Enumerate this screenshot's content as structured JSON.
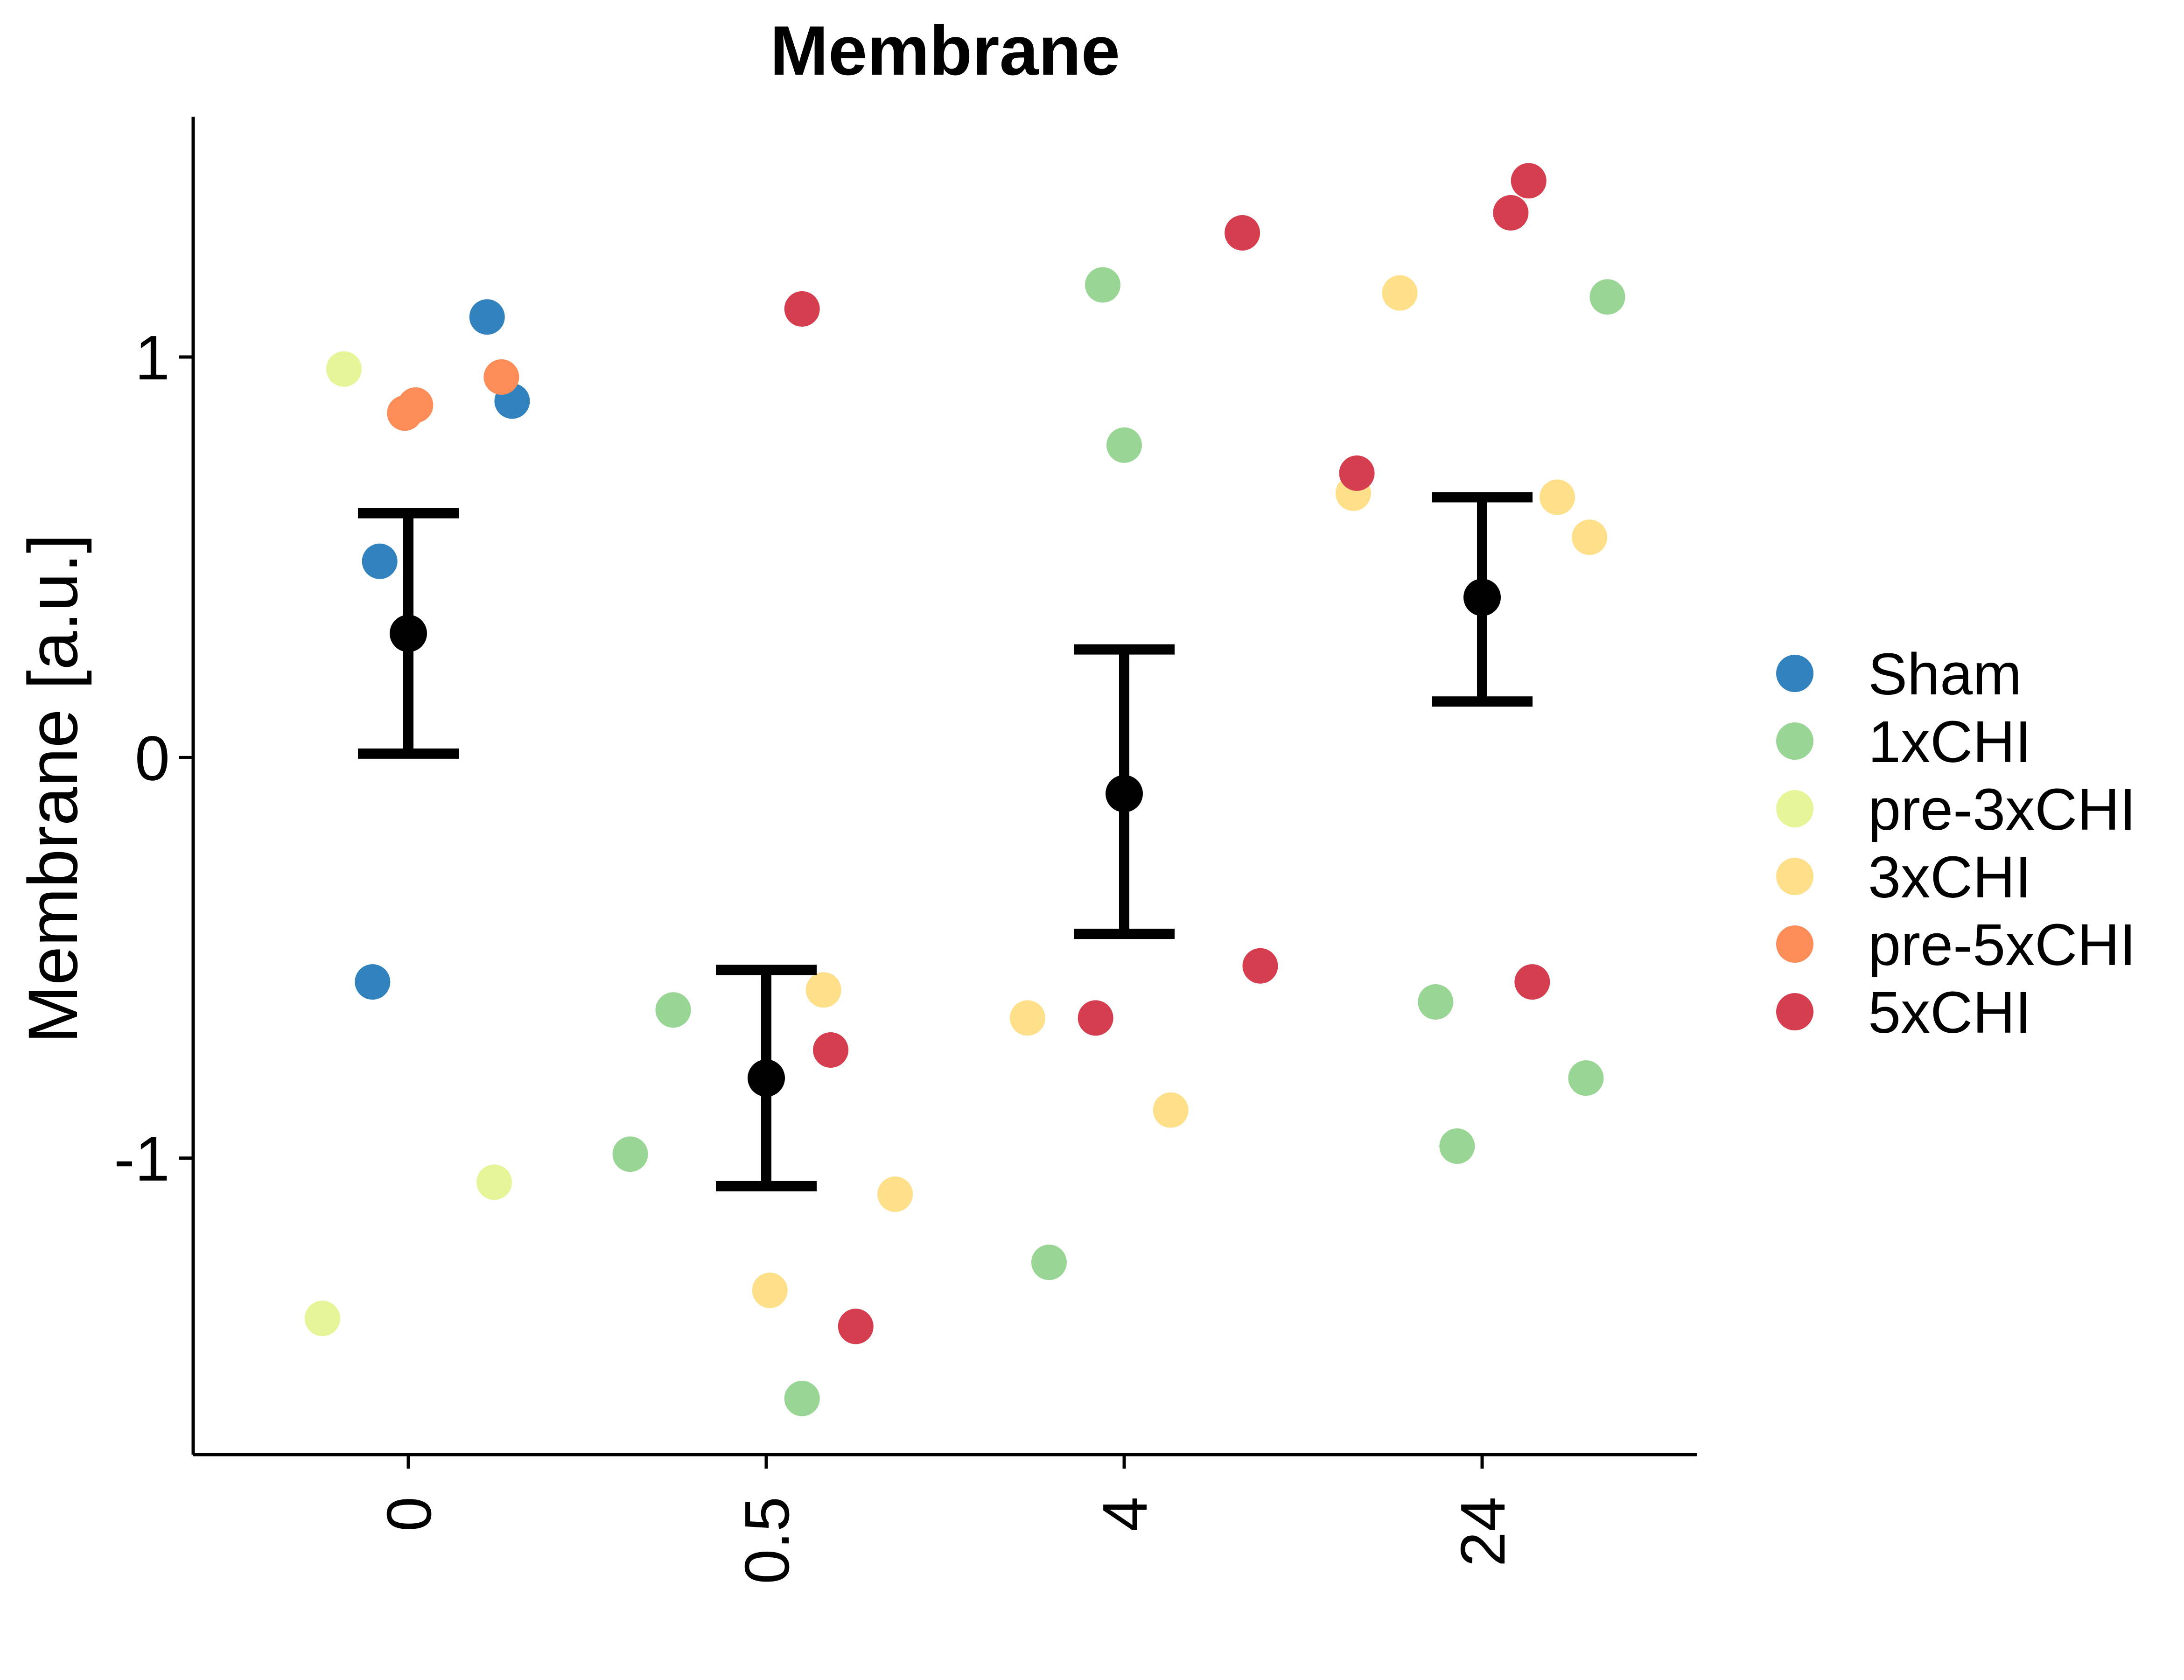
{
  "chart_data": {
    "type": "scatter",
    "title": "Membrane",
    "xlabel": "",
    "ylabel": "Membrane [a.u.]",
    "x_categories": [
      "0",
      "0.5",
      "4",
      "24"
    ],
    "y_ticks": [
      1,
      0,
      -1
    ],
    "y_tick_labels": [
      "1",
      "0",
      "-1"
    ],
    "ylim": [
      -1.74,
      1.6
    ],
    "grid": false,
    "legend_position": "right",
    "legend": [
      {
        "name": "Sham",
        "color": "#3182bd"
      },
      {
        "name": "1xCHI",
        "color": "#99d594"
      },
      {
        "name": "pre-3xCHI",
        "color": "#e6f598"
      },
      {
        "name": "3xCHI",
        "color": "#fee08b"
      },
      {
        "name": "pre-5xCHI",
        "color": "#fc8d59"
      },
      {
        "name": "5xCHI",
        "color": "#d53e4f"
      }
    ],
    "points": [
      {
        "group": "Sham",
        "x": 0.22,
        "y": 1.1
      },
      {
        "group": "Sham",
        "x": 0.29,
        "y": 0.89
      },
      {
        "group": "Sham",
        "x": -0.08,
        "y": 0.49
      },
      {
        "group": "Sham",
        "x": -0.1,
        "y": -0.56
      },
      {
        "group": "pre-3xCHI",
        "x": -0.18,
        "y": 0.97
      },
      {
        "group": "pre-3xCHI",
        "x": 0.24,
        "y": -1.06
      },
      {
        "group": "pre-3xCHI",
        "x": -0.24,
        "y": -1.4
      },
      {
        "group": "pre-5xCHI",
        "x": -0.01,
        "y": 0.86
      },
      {
        "group": "pre-5xCHI",
        "x": 0.02,
        "y": 0.88
      },
      {
        "group": "pre-5xCHI",
        "x": 0.26,
        "y": 0.95
      },
      {
        "group": "5xCHI",
        "x": 1.1,
        "y": 1.12
      },
      {
        "group": "5xCHI",
        "x": 1.18,
        "y": -0.73
      },
      {
        "group": "5xCHI",
        "x": 1.25,
        "y": -1.42
      },
      {
        "group": "1xCHI",
        "x": 0.74,
        "y": -0.63
      },
      {
        "group": "1xCHI",
        "x": 0.62,
        "y": -0.99
      },
      {
        "group": "1xCHI",
        "x": 1.1,
        "y": -1.6
      },
      {
        "group": "3xCHI",
        "x": 1.16,
        "y": -0.58
      },
      {
        "group": "3xCHI",
        "x": 1.36,
        "y": -1.09
      },
      {
        "group": "3xCHI",
        "x": 1.01,
        "y": -1.33
      },
      {
        "group": "1xCHI",
        "x": 1.94,
        "y": 1.18
      },
      {
        "group": "1xCHI",
        "x": 2.0,
        "y": 0.78
      },
      {
        "group": "1xCHI",
        "x": 1.79,
        "y": -1.26
      },
      {
        "group": "5xCHI",
        "x": 2.33,
        "y": 1.31
      },
      {
        "group": "5xCHI",
        "x": 2.38,
        "y": -0.52
      },
      {
        "group": "5xCHI",
        "x": 1.92,
        "y": -0.65
      },
      {
        "group": "3xCHI",
        "x": 1.73,
        "y": -0.65
      },
      {
        "group": "3xCHI",
        "x": 2.13,
        "y": -0.88
      },
      {
        "group": "3xCHI",
        "x": 2.77,
        "y": 1.16
      },
      {
        "group": "3xCHI",
        "x": 2.64,
        "y": 0.66
      },
      {
        "group": "5xCHI",
        "x": 2.65,
        "y": 0.71
      },
      {
        "group": "5xCHI",
        "x": 3.13,
        "y": 1.44
      },
      {
        "group": "5xCHI",
        "x": 3.08,
        "y": 1.36
      },
      {
        "group": "5xCHI",
        "x": 3.14,
        "y": -0.56
      },
      {
        "group": "1xCHI",
        "x": 3.35,
        "y": 1.15
      },
      {
        "group": "1xCHI",
        "x": 2.87,
        "y": -0.61
      },
      {
        "group": "1xCHI",
        "x": 3.29,
        "y": -0.8
      },
      {
        "group": "1xCHI",
        "x": 2.93,
        "y": -0.97
      },
      {
        "group": "3xCHI",
        "x": 3.21,
        "y": 0.65
      },
      {
        "group": "3xCHI",
        "x": 3.3,
        "y": 0.55
      }
    ],
    "summary": [
      {
        "x": "0",
        "mean": 0.31,
        "lower": 0.01,
        "upper": 0.61
      },
      {
        "x": "0.5",
        "mean": -0.8,
        "lower": -1.07,
        "upper": -0.53
      },
      {
        "x": "4",
        "mean": -0.09,
        "lower": -0.44,
        "upper": 0.27
      },
      {
        "x": "24",
        "mean": 0.4,
        "lower": 0.14,
        "upper": 0.65
      }
    ]
  }
}
